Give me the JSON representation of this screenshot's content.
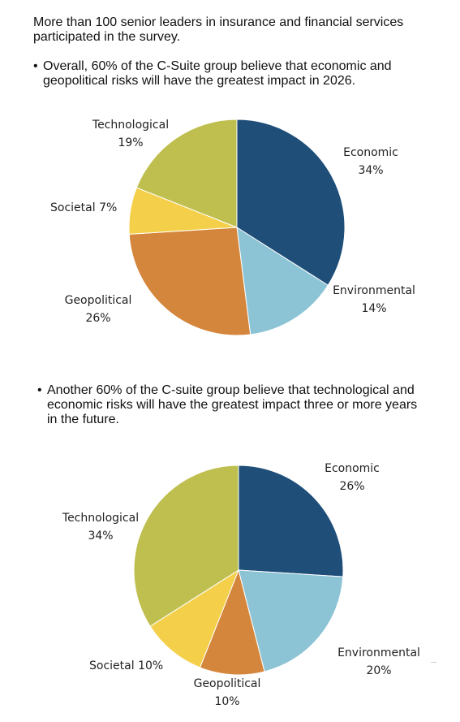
{
  "intro": "More than 100 senior leaders in insurance and financial services participated in the survey.",
  "bullet1": {
    "marker": "•",
    "text": "Overall, 60% of the C-Suite group believe that economic and geopolitical risks will have the greatest impact in 2026."
  },
  "bullet2": {
    "marker": "•",
    "text": "Another 60% of the C-suite group believe that technological and economic risks will have the greatest impact three or more years in the future."
  },
  "colors": {
    "Economic": "#1f4e79",
    "Environmental": "#8cc4d6",
    "Geopolitical": "#d5863d",
    "Societal": "#f4d04a",
    "Technological": "#bfbf50"
  },
  "chart_data": [
    {
      "type": "pie",
      "slices": [
        {
          "label": "Economic",
          "value": 34,
          "pct_text": "34%"
        },
        {
          "label": "Environmental",
          "value": 14,
          "pct_text": "14%"
        },
        {
          "label": "Geopolitical",
          "value": 26,
          "pct_text": "26%"
        },
        {
          "label": "Societal",
          "value": 7,
          "pct_text": "7%"
        },
        {
          "label": "Technological",
          "value": 19,
          "pct_text": "19%"
        }
      ]
    },
    {
      "type": "pie",
      "slices": [
        {
          "label": "Economic",
          "value": 26,
          "pct_text": "26%"
        },
        {
          "label": "Environmental",
          "value": 20,
          "pct_text": "20%"
        },
        {
          "label": "Geopolitical",
          "value": 10,
          "pct_text": "10%"
        },
        {
          "label": "Societal",
          "value": 10,
          "pct_text": "10%"
        },
        {
          "label": "Technological",
          "value": 34,
          "pct_text": "34%"
        }
      ]
    }
  ]
}
